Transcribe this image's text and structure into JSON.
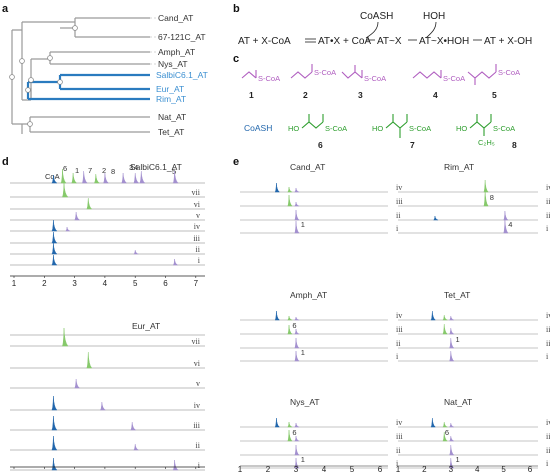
{
  "colors": {
    "blue": "#2166ac",
    "blue_label": "#3b8fd1",
    "green": "#86c96b",
    "green_chem": "#2e9e2e",
    "purple": "#a390cf",
    "purple_chem": "#b05ec0",
    "tree_gray": "#9a9a9a",
    "tree_blue": "#2a7bbf"
  },
  "panel_labels": {
    "a": "a",
    "b": "b",
    "c": "c",
    "d": "d",
    "e": "e"
  },
  "tree": {
    "taxa": [
      {
        "name": "Cand_AT",
        "highlight": false
      },
      {
        "name": "67-121C_AT",
        "highlight": false
      },
      {
        "name": "Amph_AT",
        "highlight": false
      },
      {
        "name": "Nys_AT",
        "highlight": false
      },
      {
        "name": "SalbiC6.1_AT",
        "highlight": true
      },
      {
        "name": "Eur_AT",
        "highlight": true
      },
      {
        "name": "Rim_AT",
        "highlight": true
      },
      {
        "name": "Nat_AT",
        "highlight": false
      },
      {
        "name": "Tet_AT",
        "highlight": false
      }
    ]
  },
  "scheme": {
    "cofactor": "CoASH",
    "water": "HOH",
    "left": "AT + X-CoA",
    "mid1": "AT•X + CoA",
    "mid2": "AT~X",
    "mid3": "AT~X•HOH",
    "right": "AT + X-OH"
  },
  "substrates": {
    "coash_label": "CoASH",
    "ho": "HO",
    "scoa": "S-CoA",
    "c2h5": "C₂H₅",
    "numbers": [
      "1",
      "2",
      "3",
      "4",
      "5",
      "6",
      "7",
      "8"
    ]
  },
  "panel_d": {
    "title1": "SalbiC6.1_AT",
    "title2": "Eur_AT",
    "coa_label": "CoA",
    "peak_labels": [
      "6",
      "1",
      "7",
      "2",
      "8",
      "3",
      "4",
      "5"
    ],
    "rows": [
      "vii",
      "vi",
      "v",
      "iv",
      "iii",
      "ii",
      "i"
    ],
    "ticks": [
      "1",
      "2",
      "3",
      "4",
      "5",
      "6",
      "7"
    ]
  },
  "panel_e": {
    "rows": [
      "iv",
      "iii",
      "ii",
      "i"
    ],
    "ticks": [
      "1",
      "2",
      "3",
      "4",
      "5",
      "6"
    ],
    "enzymes": [
      {
        "name": "Cand_AT",
        "labels": [
          "1"
        ]
      },
      {
        "name": "Rim_AT",
        "labels": [
          "8",
          "4"
        ]
      },
      {
        "name": "Amph_AT",
        "labels": [
          "6",
          "1"
        ]
      },
      {
        "name": "Tet_AT",
        "labels": [
          "1"
        ]
      },
      {
        "name": "Nys_AT",
        "labels": [
          "6",
          "1"
        ]
      },
      {
        "name": "Nat_AT",
        "labels": [
          "6",
          "1"
        ]
      }
    ]
  }
}
